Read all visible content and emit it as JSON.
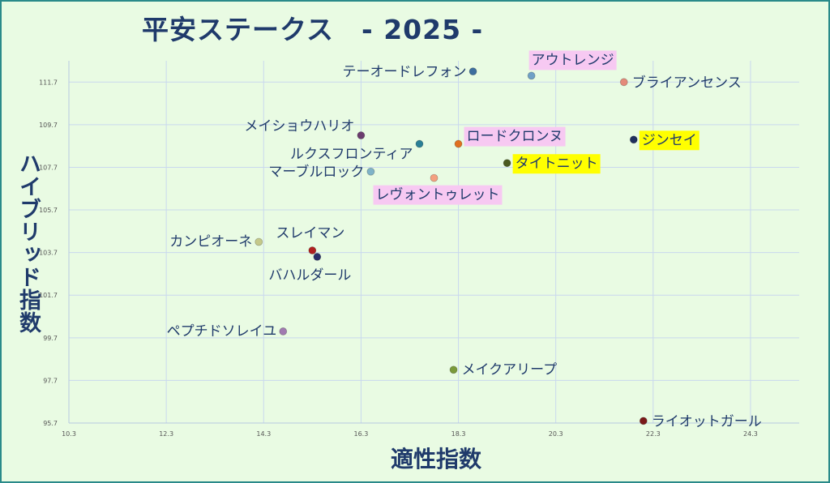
{
  "title": "平安ステークス　- 2025 -",
  "chart_data": {
    "type": "scatter",
    "title": "平安ステークス　- 2025 -",
    "xlabel": "適性指数",
    "ylabel": "ハイブリッド指数",
    "xlim": [
      10.3,
      25.3
    ],
    "ylim": [
      95.7,
      112.7
    ],
    "xticks": [
      "10.3",
      "12.3",
      "14.3",
      "16.3",
      "18.3",
      "20.3",
      "22.3",
      "24.3"
    ],
    "yticks": [
      "95.7",
      "97.7",
      "99.7",
      "101.7",
      "103.7",
      "105.7",
      "107.7",
      "109.7",
      "111.7"
    ],
    "grid": true,
    "points": [
      {
        "name": "テーオードレフォン",
        "x": 18.6,
        "y": 112.2,
        "color": "#3d6e9e",
        "hl": ""
      },
      {
        "name": "アウトレンジ",
        "x": 19.8,
        "y": 112.0,
        "color": "#6fa0c6",
        "hl": "#f7c9f2"
      },
      {
        "name": "ブライアンセンス",
        "x": 21.7,
        "y": 111.7,
        "color": "#e48a7a",
        "hl": ""
      },
      {
        "name": "メイショウハリオ",
        "x": 16.3,
        "y": 109.2,
        "color": "#6b3c6e",
        "hl": ""
      },
      {
        "name": "ルクスフロンティア",
        "x": 17.5,
        "y": 108.8,
        "color": "#2b7f96",
        "hl": ""
      },
      {
        "name": "ロードクロンヌ",
        "x": 18.3,
        "y": 108.8,
        "color": "#e07020",
        "hl": "#f7c9f2"
      },
      {
        "name": "ジンセイ",
        "x": 21.9,
        "y": 109.0,
        "color": "#1f2f5e",
        "hl": "#ffff00"
      },
      {
        "name": "タイトニット",
        "x": 19.3,
        "y": 107.9,
        "color": "#4b5a20",
        "hl": "#ffff00"
      },
      {
        "name": "マーブルロック",
        "x": 16.5,
        "y": 107.5,
        "color": "#7fb3c8",
        "hl": ""
      },
      {
        "name": "レヴォントゥレット",
        "x": 17.8,
        "y": 107.2,
        "color": "#f4a080",
        "hl": "#f7c9f2"
      },
      {
        "name": "カンピオーネ",
        "x": 14.2,
        "y": 104.2,
        "color": "#c5c98a",
        "hl": ""
      },
      {
        "name": "スレイマン",
        "x": 15.3,
        "y": 103.8,
        "color": "#b02020",
        "hl": ""
      },
      {
        "name": "バハルダール",
        "x": 15.4,
        "y": 103.5,
        "color": "#2a2f6a",
        "hl": ""
      },
      {
        "name": "ペプチドソレイユ",
        "x": 14.7,
        "y": 100.0,
        "color": "#a07ab0",
        "hl": ""
      },
      {
        "name": "メイクアリープ",
        "x": 18.2,
        "y": 98.2,
        "color": "#7a9a3a",
        "hl": ""
      },
      {
        "name": "ライオットガール",
        "x": 22.1,
        "y": 95.8,
        "color": "#7a1a1a",
        "hl": ""
      }
    ]
  }
}
